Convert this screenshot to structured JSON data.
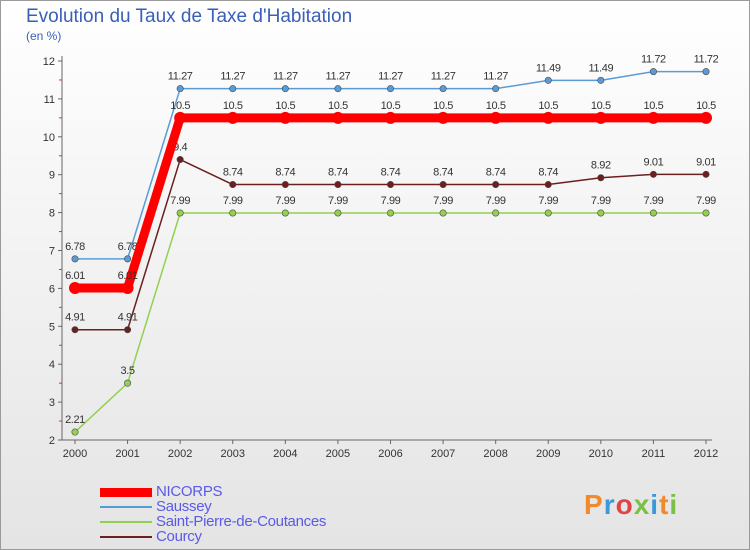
{
  "title": "Evolution du Taux de Taxe d'Habitation",
  "subtitle": "(en %)",
  "brand": {
    "letters": [
      {
        "ch": "P",
        "color": "#f08a2a"
      },
      {
        "ch": "r",
        "color": "#3a9ad9"
      },
      {
        "ch": "o",
        "color": "#e04545"
      },
      {
        "ch": "x",
        "color": "#7ac143"
      },
      {
        "ch": "i",
        "color": "#3a9ad9"
      },
      {
        "ch": "t",
        "color": "#f08a2a"
      },
      {
        "ch": "i",
        "color": "#7ac143"
      }
    ]
  },
  "chart_data": {
    "type": "line",
    "title": "Evolution du Taux de Taxe d'Habitation",
    "ylabel": "(en %)",
    "xlabel": "",
    "ylim": [
      2,
      12
    ],
    "yticks": [
      "2",
      "3",
      "4",
      "5",
      "6",
      "7",
      "8",
      "9",
      "10",
      "11",
      "12"
    ],
    "x": [
      "2000",
      "2001",
      "2002",
      "2003",
      "2004",
      "2005",
      "2006",
      "2007",
      "2008",
      "2009",
      "2010",
      "2011",
      "2012"
    ],
    "grid": false,
    "legend_position": "bottom-left",
    "series": [
      {
        "name": "Saussey",
        "color": "#5b9bd5",
        "values": [
          6.78,
          6.78,
          11.27,
          11.27,
          11.27,
          11.27,
          11.27,
          11.27,
          11.27,
          11.49,
          11.49,
          11.72,
          11.72
        ],
        "labels": [
          "6.78",
          "6.78",
          "11.27",
          "11.27",
          "11.27",
          "11.27",
          "11.27",
          "11.27",
          "11.27",
          "11.49",
          "11.49",
          "11.72",
          "11.72"
        ]
      },
      {
        "name": "Saint-Pierre-de-Coutances",
        "color": "#92d050",
        "values": [
          2.21,
          3.5,
          7.99,
          7.99,
          7.99,
          7.99,
          7.99,
          7.99,
          7.99,
          7.99,
          7.99,
          7.99,
          7.99
        ],
        "labels": [
          "2.21",
          "3.5",
          "7.99",
          "7.99",
          "7.99",
          "7.99",
          "7.99",
          "7.99",
          "7.99",
          "7.99",
          "7.99",
          "7.99",
          "7.99"
        ]
      },
      {
        "name": "Courcy",
        "color": "#6b1f1f",
        "values": [
          4.91,
          4.91,
          9.4,
          8.74,
          8.74,
          8.74,
          8.74,
          8.74,
          8.74,
          8.74,
          8.92,
          9.01,
          9.01
        ],
        "labels": [
          "4.91",
          "4.91",
          "9.4",
          "8.74",
          "8.74",
          "8.74",
          "8.74",
          "8.74",
          "8.74",
          "8.74",
          "8.92",
          "9.01",
          "9.01"
        ]
      },
      {
        "name": "NICORPS",
        "color": "#ff0000",
        "values": [
          6.01,
          6.01,
          10.5,
          10.5,
          10.5,
          10.5,
          10.5,
          10.5,
          10.5,
          10.5,
          10.5,
          10.5,
          10.5
        ],
        "labels": [
          "6.01",
          "6.01",
          "10.5",
          "10.5",
          "10.5",
          "10.5",
          "10.5",
          "10.5",
          "10.5",
          "10.5",
          "10.5",
          "10.5",
          "10.5"
        ]
      }
    ],
    "legend": [
      {
        "name": "NICORPS",
        "color": "#ff0000"
      },
      {
        "name": "Saussey",
        "color": "#5b9bd5"
      },
      {
        "name": "Saint-Pierre-de-Coutances",
        "color": "#92d050"
      },
      {
        "name": "Courcy",
        "color": "#6b1f1f"
      }
    ]
  }
}
